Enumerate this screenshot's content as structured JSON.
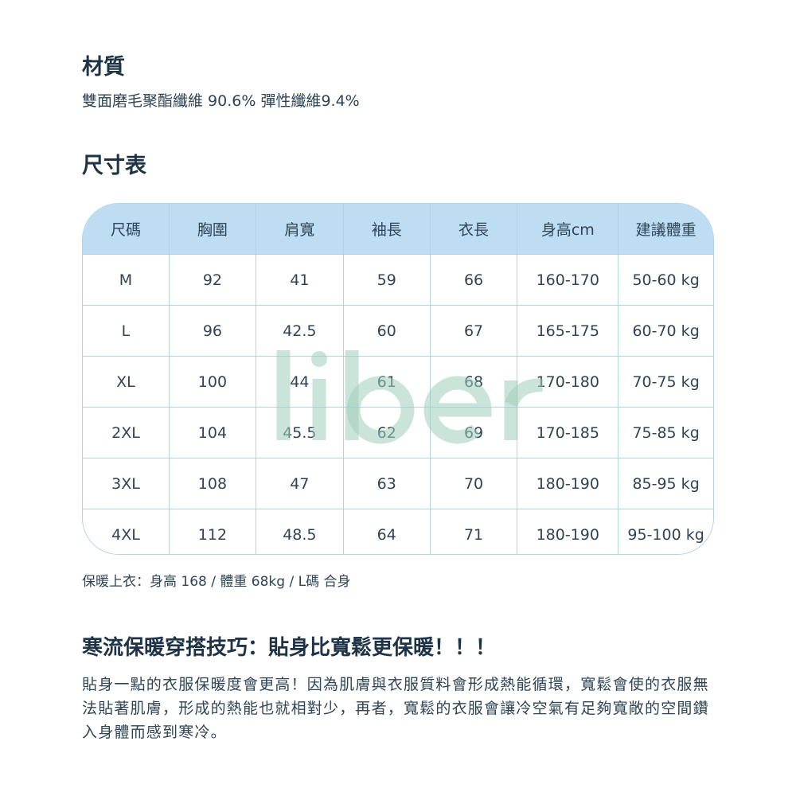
{
  "material": {
    "title": "材質",
    "text": "雙面磨毛聚酯纖維 90.6%  彈性纖維9.4%"
  },
  "size_chart": {
    "title": "尺寸表",
    "headers": [
      "尺碼",
      "胸圍",
      "肩寬",
      "袖長",
      "衣長",
      "身高cm",
      "建議體重"
    ],
    "rows": [
      [
        "M",
        "92",
        "41",
        "59",
        "66",
        "160-170",
        "50-60 kg"
      ],
      [
        "L",
        "96",
        "42.5",
        "60",
        "67",
        "165-175",
        "60-70 kg"
      ],
      [
        "XL",
        "100",
        "44",
        "61",
        "68",
        "170-180",
        "70-75 kg"
      ],
      [
        "2XL",
        "104",
        "45.5",
        "62",
        "69",
        "170-185",
        "75-85 kg"
      ],
      [
        "3XL",
        "108",
        "47",
        "63",
        "70",
        "180-190",
        "85-95 kg"
      ],
      [
        "4XL",
        "112",
        "48.5",
        "64",
        "71",
        "180-190",
        "95-100 kg"
      ]
    ],
    "watermark": "liber",
    "note": "保暖上衣：身高 168 / 體重 68kg / L碼 合身"
  },
  "tips": {
    "title": "寒流保暖穿搭技巧：貼身比寬鬆更保暖！！！",
    "text": "貼身一點的衣服保暖度會更高！因為肌膚與衣服質料會形成熱能循環，寬鬆會使的衣服無法貼著肌膚，形成的熱能也就相對少，再者，寬鬆的衣服會讓冷空氣有足夠寬敞的空間鑽入身體而感到寒冷。"
  },
  "colors": {
    "header_bg": "#bedcf2",
    "border": "#b4d3e2",
    "text": "#2f4455"
  }
}
